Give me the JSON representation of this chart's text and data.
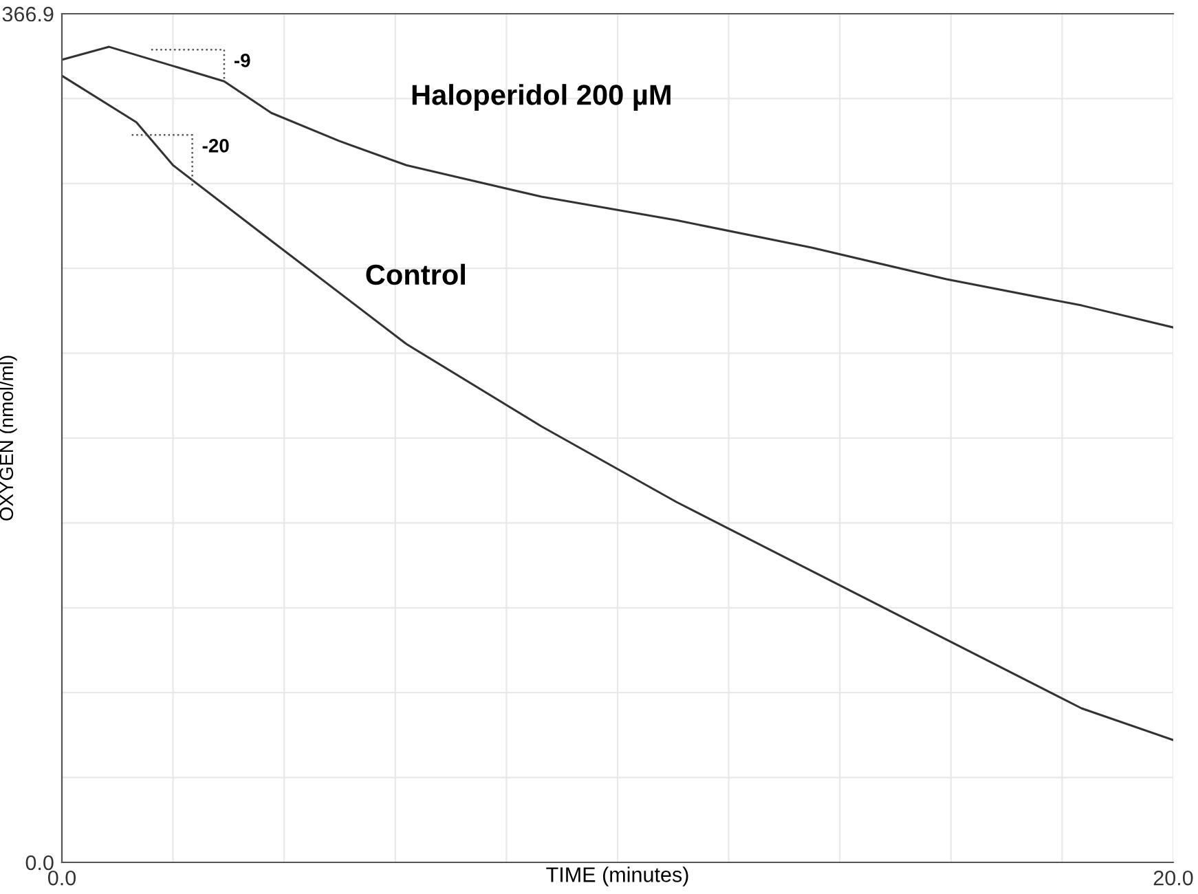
{
  "chart_data": {
    "type": "line",
    "xlabel": "TIME (minutes)",
    "ylabel": "OXYGEN (nmol/ml)",
    "xlim": [
      0,
      20
    ],
    "ylim": [
      0,
      366.9
    ],
    "xticks": [
      {
        "value": 0,
        "label": "0.0"
      },
      {
        "value": 2,
        "label": null
      },
      {
        "value": 4,
        "label": null
      },
      {
        "value": 6,
        "label": null
      },
      {
        "value": 8,
        "label": null
      },
      {
        "value": 10,
        "label": null
      },
      {
        "value": 12,
        "label": null
      },
      {
        "value": 14,
        "label": null
      },
      {
        "value": 16,
        "label": null
      },
      {
        "value": 18,
        "label": null
      },
      {
        "value": 20,
        "label": "20.0"
      }
    ],
    "yticks": [
      {
        "value": 0,
        "label": "0.0"
      },
      {
        "value": 36.69,
        "label": null
      },
      {
        "value": 73.38,
        "label": null
      },
      {
        "value": 110.07,
        "label": null
      },
      {
        "value": 146.76,
        "label": null
      },
      {
        "value": 183.45,
        "label": null
      },
      {
        "value": 220.14,
        "label": null
      },
      {
        "value": 256.83,
        "label": null
      },
      {
        "value": 293.52,
        "label": null
      },
      {
        "value": 330.21,
        "label": null
      },
      {
        "value": 366.9,
        "label": "366.9"
      }
    ],
    "grid": true,
    "legend": false,
    "marker": "none",
    "line_style": "solid",
    "series": [
      {
        "name": "Haloperidol 200 µM",
        "color": "#333333",
        "x": [
          0,
          0.85,
          2.92,
          3.77,
          4.98,
          6.2,
          8.63,
          11.06,
          13.49,
          15.92,
          18.35,
          20
        ],
        "values": [
          347,
          352.6,
          337.7,
          324,
          312,
          301.4,
          287.8,
          277.6,
          265.8,
          252.1,
          240.8,
          231.3
        ]
      },
      {
        "name": "Control",
        "color": "#333333",
        "x": [
          0,
          1.34,
          2.0,
          3.77,
          6.2,
          8.63,
          11.06,
          13.49,
          15.92,
          18.35,
          20
        ],
        "values": [
          340.1,
          320,
          301.4,
          268.7,
          224.1,
          188.5,
          155.8,
          126,
          96.3,
          66.6,
          52.9
        ]
      }
    ],
    "annotations": [
      "-9",
      "-20"
    ]
  }
}
